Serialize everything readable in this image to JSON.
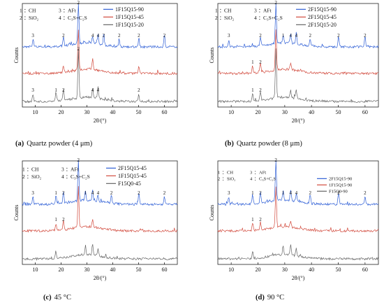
{
  "chart_data": [
    {
      "type": "line",
      "caption_letter": "(a)",
      "caption_text": "Quartz powder (4 μm)",
      "xlabel": "2θ/(°)",
      "ylabel": "Counts",
      "xlim": [
        5,
        65
      ],
      "xticks": [
        10,
        20,
        30,
        40,
        50,
        60
      ],
      "grid": false,
      "legend_position": "top-right",
      "phase_key": [
        {
          "num": "1",
          "name": "CH"
        },
        {
          "num": "2",
          "name": "SiO₂"
        },
        {
          "num": "3",
          "name": "AFt"
        },
        {
          "num": "4",
          "name": "C₃S+C₂S"
        }
      ],
      "series": [
        {
          "name": "1F15Q15-90",
          "color": "#2f5fd6",
          "peaks": [
            {
              "x": 9.1,
              "label": "3"
            },
            {
              "x": 20.9,
              "label": "2"
            },
            {
              "x": 26.7,
              "label": "2"
            },
            {
              "x": 32.2,
              "label": "4"
            },
            {
              "x": 34.3,
              "label": "4"
            },
            {
              "x": 36.5,
              "label": "2"
            },
            {
              "x": 42.5,
              "label": "2"
            },
            {
              "x": 50.1,
              "label": "2"
            },
            {
              "x": 60.0,
              "label": "2"
            }
          ]
        },
        {
          "name": "1F15Q15-45",
          "color": "#d24b3e",
          "peaks": [
            {
              "x": 20.9,
              "label": ""
            },
            {
              "x": 26.7,
              "label": ""
            },
            {
              "x": 32.2,
              "label": ""
            },
            {
              "x": 50.1,
              "label": ""
            }
          ]
        },
        {
          "name": "1F15Q15-20",
          "color": "#666666",
          "peaks": [
            {
              "x": 9.1,
              "label": "3"
            },
            {
              "x": 18.0,
              "label": "1"
            },
            {
              "x": 20.9,
              "label": "2"
            },
            {
              "x": 26.7,
              "label": "2"
            },
            {
              "x": 32.2,
              "label": "4"
            },
            {
              "x": 34.3,
              "label": "4"
            },
            {
              "x": 50.1,
              "label": "2"
            }
          ]
        }
      ]
    },
    {
      "type": "line",
      "caption_letter": "(b)",
      "caption_text": "Quartz powder (8 μm)",
      "xlabel": "2θ/(°)",
      "ylabel": "Counts",
      "xlim": [
        5,
        65
      ],
      "xticks": [
        10,
        20,
        30,
        40,
        50,
        60
      ],
      "grid": false,
      "legend_position": "top-right",
      "phase_key": [
        {
          "num": "1",
          "name": "CH"
        },
        {
          "num": "2",
          "name": "SiO₂"
        },
        {
          "num": "3",
          "name": "AFt"
        },
        {
          "num": "4",
          "name": "C₃S+C₂S"
        }
      ],
      "series": [
        {
          "name": "2F15Q15-90",
          "color": "#2f5fd6",
          "peaks": [
            {
              "x": 9.1,
              "label": "3"
            },
            {
              "x": 20.9,
              "label": "2"
            },
            {
              "x": 26.7,
              "label": "2"
            },
            {
              "x": 29.4,
              "label": "1"
            },
            {
              "x": 32.2,
              "label": "4"
            },
            {
              "x": 34.3,
              "label": "4"
            },
            {
              "x": 39.5,
              "label": "2"
            },
            {
              "x": 50.1,
              "label": "2"
            },
            {
              "x": 60.0,
              "label": "2"
            }
          ]
        },
        {
          "name": "2F15Q15-45",
          "color": "#d24b3e",
          "peaks": [
            {
              "x": 18.0,
              "label": "1"
            },
            {
              "x": 20.9,
              "label": "2"
            },
            {
              "x": 26.7,
              "label": ""
            },
            {
              "x": 32.2,
              "label": ""
            }
          ]
        },
        {
          "name": "2F15Q15-20",
          "color": "#666666",
          "peaks": [
            {
              "x": 18.0,
              "label": "1"
            },
            {
              "x": 20.9,
              "label": "2"
            },
            {
              "x": 26.7,
              "label": ""
            },
            {
              "x": 32.2,
              "label": ""
            },
            {
              "x": 34.3,
              "label": ""
            }
          ]
        }
      ]
    },
    {
      "type": "line",
      "caption_letter": "(c)",
      "caption_text": "45 °C",
      "xlabel": "2θ/(°)",
      "ylabel": "Counts",
      "xlim": [
        5,
        65
      ],
      "xticks": [
        10,
        20,
        30,
        40,
        50,
        60
      ],
      "grid": false,
      "legend_position": "top-right",
      "phase_key": [
        {
          "num": "1",
          "name": "CH"
        },
        {
          "num": "2",
          "name": "SiO₂"
        },
        {
          "num": "3",
          "name": "AFt"
        },
        {
          "num": "4",
          "name": "C₃S+C₂S"
        }
      ],
      "series": [
        {
          "name": "2F15Q15-45",
          "color": "#2f5fd6",
          "peaks": [
            {
              "x": 9.1,
              "label": "3"
            },
            {
              "x": 18.0,
              "label": "1"
            },
            {
              "x": 20.9,
              "label": "2"
            },
            {
              "x": 26.7,
              "label": "2"
            },
            {
              "x": 29.4,
              "label": "1"
            },
            {
              "x": 32.2,
              "label": "4"
            },
            {
              "x": 34.3,
              "label": "4"
            },
            {
              "x": 39.5,
              "label": "2"
            },
            {
              "x": 50.1,
              "label": "2"
            },
            {
              "x": 60.0,
              "label": "2"
            }
          ]
        },
        {
          "name": "1F15Q15-45",
          "color": "#d24b3e",
          "peaks": [
            {
              "x": 18.0,
              "label": "1"
            },
            {
              "x": 20.9,
              "label": "2"
            },
            {
              "x": 26.7,
              "label": ""
            },
            {
              "x": 32.2,
              "label": ""
            }
          ]
        },
        {
          "name": "F15Q0-45",
          "color": "#666666",
          "peaks": [
            {
              "x": 18.0,
              "label": ""
            },
            {
              "x": 29.4,
              "label": ""
            },
            {
              "x": 32.2,
              "label": ""
            },
            {
              "x": 34.3,
              "label": ""
            }
          ]
        }
      ]
    },
    {
      "type": "line",
      "caption_letter": "(d)",
      "caption_text": "90 °C",
      "xlabel": "2θ/(°)",
      "ylabel": "Counts",
      "xlim": [
        5,
        65
      ],
      "xticks": [
        10,
        20,
        30,
        40,
        50,
        60
      ],
      "grid": false,
      "legend_position": "top-right",
      "phase_key": [
        {
          "num": "1",
          "name": "CH"
        },
        {
          "num": "2",
          "name": "SiO₂"
        },
        {
          "num": "3",
          "name": "AFt"
        },
        {
          "num": "4",
          "name": "C₃S+C₂S"
        }
      ],
      "series": [
        {
          "name": "2F15Q15-90",
          "color": "#2f5fd6",
          "peaks": [
            {
              "x": 9.1,
              "label": "3"
            },
            {
              "x": 18.0,
              "label": "1"
            },
            {
              "x": 20.9,
              "label": "2"
            },
            {
              "x": 26.7,
              "label": "2"
            },
            {
              "x": 29.4,
              "label": "1"
            },
            {
              "x": 32.2,
              "label": "4"
            },
            {
              "x": 34.3,
              "label": "4"
            },
            {
              "x": 39.5,
              "label": "2"
            },
            {
              "x": 50.1,
              "label": "2"
            },
            {
              "x": 60.0,
              "label": "2"
            }
          ]
        },
        {
          "name": "1F15Q15-90",
          "color": "#d24b3e",
          "peaks": [
            {
              "x": 18.0,
              "label": "1"
            },
            {
              "x": 20.9,
              "label": "2"
            },
            {
              "x": 26.7,
              "label": ""
            },
            {
              "x": 32.2,
              "label": ""
            }
          ]
        },
        {
          "name": "F15Q0-90",
          "color": "#666666",
          "peaks": [
            {
              "x": 18.0,
              "label": ""
            },
            {
              "x": 29.4,
              "label": ""
            },
            {
              "x": 32.2,
              "label": ""
            },
            {
              "x": 34.3,
              "label": ""
            }
          ]
        }
      ]
    }
  ]
}
